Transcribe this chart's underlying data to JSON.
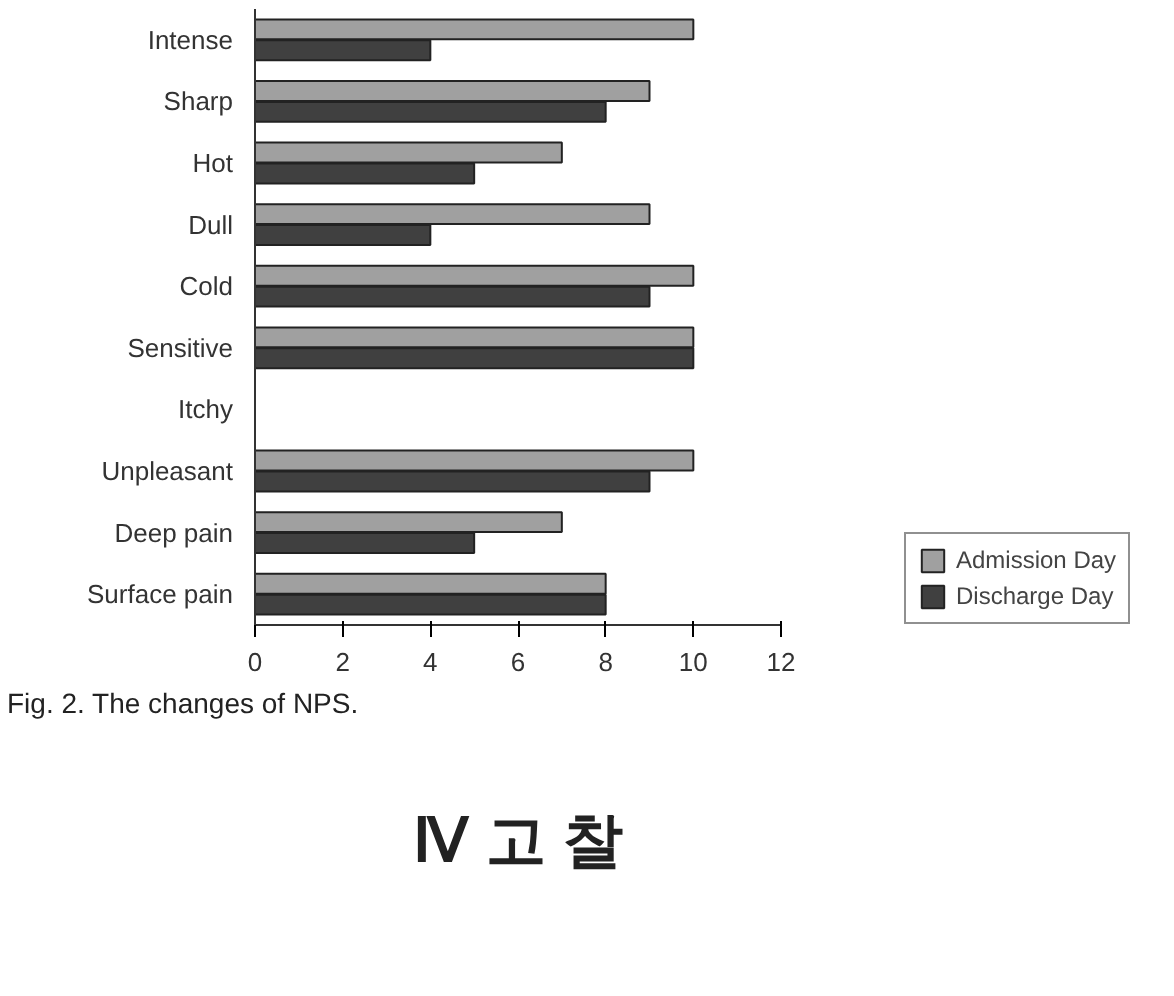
{
  "chart_data": {
    "type": "bar",
    "orientation": "horizontal",
    "categories": [
      "Intense",
      "Sharp",
      "Hot",
      "Dull",
      "Cold",
      "Sensitive",
      "Itchy",
      "Unpleasant",
      "Deep pain",
      "Surface pain"
    ],
    "series": [
      {
        "name": "Admission Day",
        "color": "#a0a0a0",
        "values": [
          10,
          9,
          7,
          9,
          10,
          10,
          0,
          10,
          7,
          8
        ]
      },
      {
        "name": "Discharge Day",
        "color": "#404040",
        "values": [
          4,
          8,
          5,
          4,
          9,
          10,
          0,
          9,
          5,
          8
        ]
      }
    ],
    "xlim": [
      0,
      12
    ],
    "xticks": [
      0,
      2,
      4,
      6,
      8,
      10,
      12
    ],
    "grid": false,
    "legend": "right",
    "annotations": [
      "Fig. 2. The changes of NPS.",
      "Ⅳ 고 찰"
    ]
  }
}
